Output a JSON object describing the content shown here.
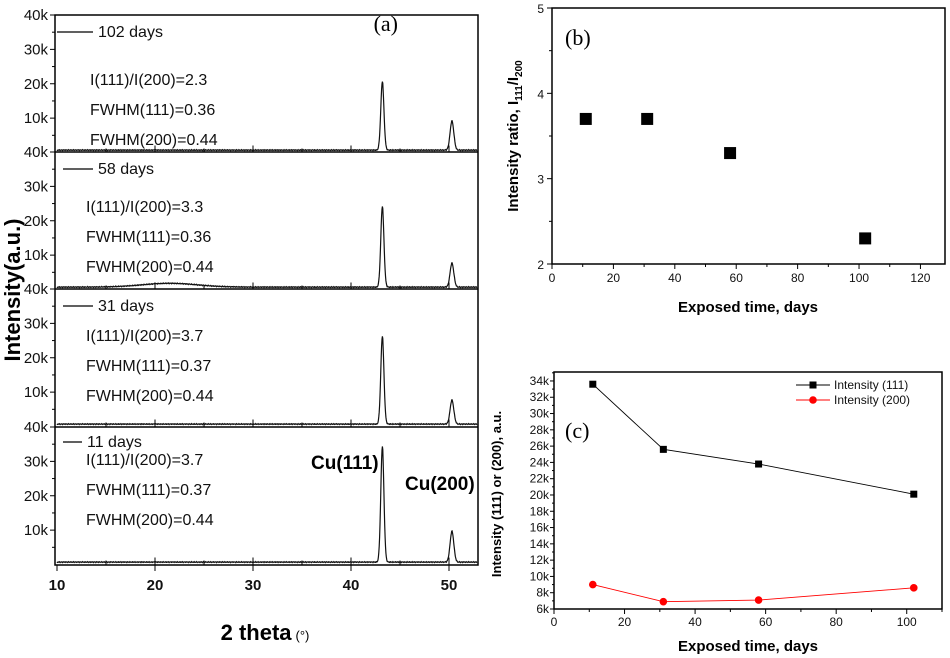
{
  "chart_data": [
    {
      "type": "line",
      "panel_label": "(a)",
      "xlabel": "2 theta",
      "xlabel_unit": "(°)",
      "ylabel": "Intensity(a.u.)",
      "xlim": [
        10,
        53
      ],
      "ylim": [
        0,
        40000
      ],
      "xticks": [
        10,
        20,
        30,
        40,
        50
      ],
      "yticks": [
        {
          "v": 40000,
          "label": "40k"
        },
        {
          "v": 30000,
          "label": "30k"
        },
        {
          "v": 20000,
          "label": "20k"
        },
        {
          "v": 10000,
          "label": "10k"
        }
      ],
      "grid": false,
      "peak_labels": [
        "Cu(111)",
        "Cu(200)"
      ],
      "peak_positions": [
        43.2,
        50.3
      ],
      "panels": [
        {
          "legend": "102 days",
          "annotations": [
            "I(111)/I(200)=2.3",
            "FWHM(111)=0.36",
            "FWHM(200)=0.44"
          ],
          "peak_intensities": [
            20000,
            8500
          ],
          "broad_hump": false
        },
        {
          "legend": "58 days",
          "annotations": [
            "I(111)/I(200)=3.3",
            "FWHM(111)=0.36",
            "FWHM(200)=0.44"
          ],
          "peak_intensities": [
            23500,
            7000
          ],
          "broad_hump": true
        },
        {
          "legend": "31 days",
          "annotations": [
            "I(111)/I(200)=3.7",
            "FWHM(111)=0.37",
            "FWHM(200)=0.44"
          ],
          "peak_intensities": [
            25600,
            7000
          ],
          "broad_hump": false
        },
        {
          "legend": "11 days",
          "annotations": [
            "I(111)/I(200)=3.7",
            "FWHM(111)=0.37",
            "FWHM(200)=0.44"
          ],
          "peak_intensities": [
            33700,
            9000
          ],
          "broad_hump": false
        }
      ]
    },
    {
      "type": "scatter",
      "panel_label": "(b)",
      "xlabel": "Exposed time, days",
      "ylabel_parts": [
        "Intensity ratio, I",
        "111",
        "/I",
        "200"
      ],
      "xlim": [
        0,
        128
      ],
      "ylim": [
        2,
        5
      ],
      "xticks": [
        0,
        20,
        40,
        60,
        80,
        100,
        120
      ],
      "yticks": [
        2,
        3,
        4,
        5
      ],
      "grid": false,
      "x": [
        11,
        31,
        58,
        102
      ],
      "y": [
        3.7,
        3.7,
        3.3,
        2.3
      ],
      "marker_color": "#000000"
    },
    {
      "type": "line",
      "panel_label": "(c)",
      "xlabel": "Exposed time, days",
      "ylabel": "Intensity (111) or (200), a.u.",
      "xlim": [
        0,
        110
      ],
      "ylim": [
        6000,
        35100
      ],
      "xticks": [
        0,
        20,
        40,
        60,
        80,
        100
      ],
      "yticks": [
        {
          "v": 6000,
          "label": "6k"
        },
        {
          "v": 8000,
          "label": "8k"
        },
        {
          "v": 10000,
          "label": "10k"
        },
        {
          "v": 12000,
          "label": "12k"
        },
        {
          "v": 14000,
          "label": "14k"
        },
        {
          "v": 16000,
          "label": "16k"
        },
        {
          "v": 18000,
          "label": "18k"
        },
        {
          "v": 20000,
          "label": "20k"
        },
        {
          "v": 22000,
          "label": "22k"
        },
        {
          "v": 24000,
          "label": "24k"
        },
        {
          "v": 26000,
          "label": "26k"
        },
        {
          "v": 28000,
          "label": "28k"
        },
        {
          "v": 30000,
          "label": "30k"
        },
        {
          "v": 32000,
          "label": "32k"
        },
        {
          "v": 34000,
          "label": "34k"
        }
      ],
      "grid": false,
      "legend_position": "top-right",
      "x": [
        11,
        31,
        58,
        102
      ],
      "series": [
        {
          "name": "Intensity (111)",
          "values": [
            33600,
            25600,
            23800,
            20100
          ],
          "color": "#000000",
          "marker": "square"
        },
        {
          "name": "Intensity (200)",
          "values": [
            9000,
            6900,
            7100,
            8600
          ],
          "color": "#ff0000",
          "marker": "circle"
        }
      ]
    }
  ]
}
